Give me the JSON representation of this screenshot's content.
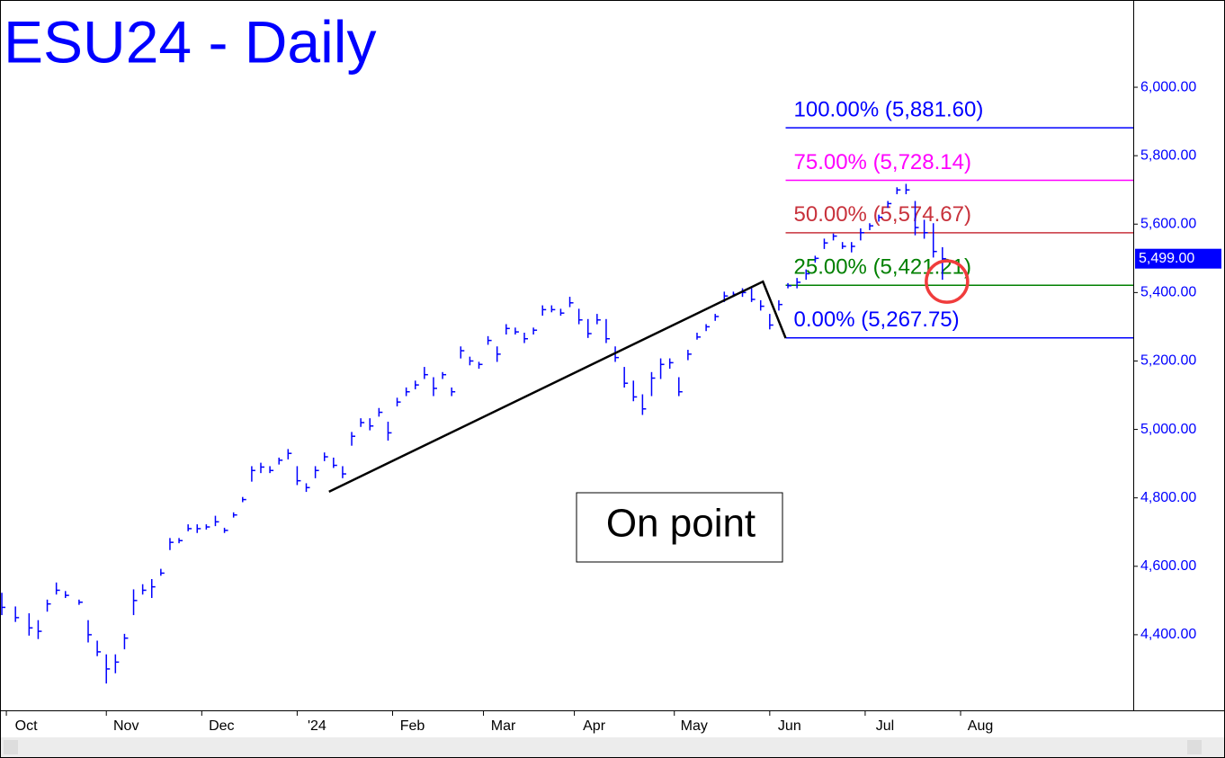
{
  "chart_data": {
    "type": "ohlc",
    "title": "ESU24 - Daily",
    "color": "#0000ff",
    "x": [
      0,
      3,
      6,
      8,
      10,
      12,
      14,
      17,
      19,
      21,
      23,
      25,
      27,
      29,
      31,
      33,
      35,
      37,
      39,
      41,
      43,
      45,
      47,
      49,
      51,
      53,
      55,
      57,
      59,
      61,
      63,
      65,
      67,
      69,
      71,
      73,
      75,
      77,
      79,
      81,
      83,
      85,
      87,
      89,
      91,
      93,
      95,
      97,
      99,
      101,
      103,
      105,
      107,
      109,
      111,
      113,
      115,
      117,
      119,
      121,
      123,
      125,
      127,
      129,
      131,
      133,
      135,
      137,
      139,
      141,
      143,
      145,
      147,
      149,
      151,
      153,
      155,
      157,
      159,
      161,
      163,
      165,
      167,
      169,
      171,
      173,
      175,
      177,
      179,
      181,
      183,
      185,
      187,
      189,
      191,
      193,
      195,
      197,
      199,
      201,
      203,
      205,
      207
    ],
    "high": [
      4520,
      4480,
      4460,
      4440,
      4500,
      4550,
      4525,
      4500,
      4440,
      4380,
      4340,
      4340,
      4400,
      4530,
      4545,
      4560,
      4590,
      4680,
      4680,
      4720,
      4720,
      4720,
      4745,
      4710,
      4755,
      4800,
      4890,
      4900,
      4890,
      4915,
      4940,
      4890,
      4840,
      4890,
      4930,
      4915,
      4890,
      4990,
      5030,
      5030,
      5060,
      5020,
      5090,
      5120,
      5140,
      5180,
      5150,
      5165,
      5120,
      5240,
      5210,
      5195,
      5270,
      5240,
      5305,
      5295,
      5280,
      5295,
      5360,
      5360,
      5350,
      5385,
      5350,
      5320,
      5335,
      5320,
      5240,
      5180,
      5140,
      5100,
      5165,
      5205,
      5205,
      5150,
      5230,
      5280,
      5305,
      5335,
      5400,
      5400,
      5410,
      5410,
      5375,
      5335,
      5375,
      5425,
      5440,
      5465,
      5505,
      5555,
      5570,
      5545,
      5545,
      5585,
      5600,
      5625,
      5665,
      5705,
      5715,
      5665,
      5610,
      5600,
      5530
    ],
    "low": [
      4460,
      4440,
      4400,
      4390,
      4470,
      4520,
      4510,
      4490,
      4380,
      4340,
      4260,
      4290,
      4360,
      4460,
      4520,
      4510,
      4575,
      4650,
      4670,
      4705,
      4700,
      4710,
      4720,
      4700,
      4745,
      4790,
      4850,
      4875,
      4875,
      4900,
      4915,
      4840,
      4820,
      4860,
      4910,
      4890,
      4860,
      4955,
      5010,
      5000,
      5040,
      4970,
      5070,
      5100,
      5120,
      5150,
      5100,
      5150,
      5100,
      5210,
      5190,
      5180,
      5250,
      5200,
      5280,
      5280,
      5255,
      5280,
      5335,
      5345,
      5335,
      5360,
      5310,
      5270,
      5310,
      5255,
      5200,
      5125,
      5085,
      5045,
      5100,
      5150,
      5180,
      5100,
      5205,
      5265,
      5290,
      5320,
      5375,
      5390,
      5390,
      5375,
      5350,
      5295,
      5350,
      5415,
      5415,
      5440,
      5490,
      5530,
      5555,
      5530,
      5520,
      5555,
      5585,
      5610,
      5650,
      5690,
      5690,
      5570,
      5560,
      5505,
      5440
    ],
    "close": [
      4480,
      4450,
      4420,
      4410,
      4490,
      4530,
      4515,
      4495,
      4400,
      4350,
      4300,
      4320,
      4390,
      4500,
      4530,
      4540,
      4580,
      4670,
      4675,
      4710,
      4710,
      4715,
      4730,
      4705,
      4750,
      4795,
      4880,
      4890,
      4880,
      4910,
      4930,
      4850,
      4830,
      4880,
      4920,
      4895,
      4870,
      4980,
      5020,
      5010,
      5050,
      4990,
      5080,
      5110,
      5130,
      5160,
      5120,
      5160,
      5110,
      5230,
      5200,
      5190,
      5260,
      5220,
      5295,
      5285,
      5265,
      5290,
      5350,
      5350,
      5340,
      5370,
      5320,
      5280,
      5320,
      5265,
      5210,
      5135,
      5095,
      5060,
      5150,
      5190,
      5195,
      5110,
      5220,
      5270,
      5300,
      5330,
      5390,
      5395,
      5400,
      5380,
      5360,
      5305,
      5365,
      5420,
      5430,
      5455,
      5500,
      5545,
      5565,
      5535,
      5535,
      5575,
      5595,
      5620,
      5660,
      5700,
      5700,
      5590,
      5575,
      5520,
      5499
    ],
    "xlim": [
      -0.4,
      249
    ],
    "xticks": [
      {
        "value": 1,
        "label": "Oct"
      },
      {
        "value": 23,
        "label": "Nov"
      },
      {
        "value": 44,
        "label": "Dec"
      },
      {
        "value": 65,
        "label": "'24"
      },
      {
        "value": 86,
        "label": "Feb"
      },
      {
        "value": 106,
        "label": "Mar"
      },
      {
        "value": 126,
        "label": "Apr"
      },
      {
        "value": 148,
        "label": "May"
      },
      {
        "value": 169,
        "label": "Jun"
      },
      {
        "value": 190,
        "label": "Jul"
      },
      {
        "value": 211,
        "label": "Aug"
      }
    ],
    "ylim": [
      4179,
      6255
    ],
    "yticks": [
      {
        "value": 4400,
        "label": "4,400.00"
      },
      {
        "value": 4600,
        "label": "4,600.00"
      },
      {
        "value": 4800,
        "label": "4,800.00"
      },
      {
        "value": 5000,
        "label": "5,000.00"
      },
      {
        "value": 5200,
        "label": "5,200.00"
      },
      {
        "value": 5400,
        "label": "5,400.00"
      },
      {
        "value": 5600,
        "label": "5,600.00"
      },
      {
        "value": 5800,
        "label": "5,800.00"
      },
      {
        "value": 6000,
        "label": "6,000.00"
      }
    ],
    "last_price": {
      "value": 5499,
      "label": "5,499.00"
    },
    "trend_line": {
      "x": [
        72,
        167.5,
        172.5
      ],
      "values": [
        4818,
        5432,
        5267
      ]
    },
    "levels": [
      {
        "value": 5881.6,
        "label": "100.00% (5,881.60)",
        "color": "#0000ff"
      },
      {
        "value": 5728.14,
        "label": "75.00% (5,728.14)",
        "color": "#ff00ff"
      },
      {
        "value": 5574.67,
        "label": "50.00% (5,574.67)",
        "color": "#c8323c"
      },
      {
        "value": 5421.21,
        "label": "25.00% (5,421.21)",
        "color": "#008000"
      },
      {
        "value": 5267.75,
        "label": "0.00% (5,267.75)",
        "color": "#0000ff"
      }
    ],
    "levels_start": 172.5,
    "highlight": {
      "x": 208,
      "y": 5432
    },
    "annotation": "On point"
  }
}
